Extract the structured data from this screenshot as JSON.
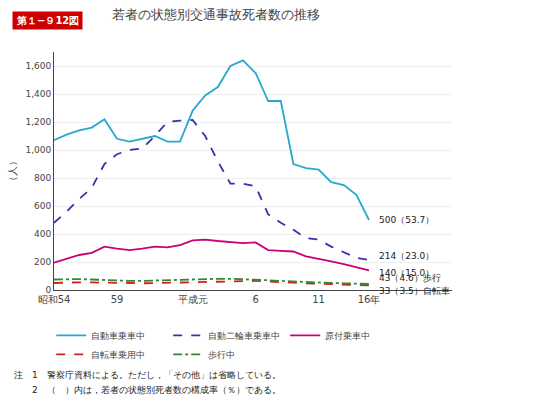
{
  "chart_data": {
    "type": "line",
    "title": "若者の状態別交通事故死者数の推移",
    "y_label": "（人）",
    "categories": [
      "昭和54",
      null,
      null,
      null,
      null,
      "59",
      null,
      null,
      null,
      null,
      null,
      "平成元",
      null,
      null,
      null,
      null,
      "6",
      null,
      null,
      null,
      null,
      "11",
      null,
      null,
      null,
      "16年"
    ],
    "series": [
      {
        "name": "自動車乗車中",
        "color": "#29a8cc",
        "line_style": "solid",
        "values": [
          1070,
          1110,
          1140,
          1160,
          1220,
          1080,
          1060,
          1080,
          1100,
          1060,
          1060,
          1280,
          1390,
          1450,
          1600,
          1640,
          1550,
          1350,
          1350,
          900,
          870,
          860,
          770,
          750,
          680,
          500
        ]
      },
      {
        "name": "自動二輪車乗車中",
        "color": "#3333aa",
        "line_style": "dashed",
        "values": [
          480,
          560,
          650,
          730,
          900,
          970,
          1000,
          1010,
          1100,
          1200,
          1210,
          1215,
          1100,
          920,
          760,
          760,
          740,
          540,
          480,
          430,
          370,
          360,
          310,
          270,
          230,
          214
        ]
      },
      {
        "name": "原付乗車中",
        "color": "#cc0077",
        "line_style": "solid",
        "values": [
          195,
          225,
          250,
          265,
          310,
          295,
          285,
          295,
          310,
          305,
          320,
          355,
          360,
          350,
          340,
          335,
          340,
          285,
          280,
          275,
          240,
          225,
          205,
          185,
          165,
          140
        ]
      },
      {
        "name": "自転車乗用中",
        "color": "#cc2222",
        "line_style": "dashed",
        "values": [
          50,
          54,
          55,
          54,
          54,
          52,
          50,
          48,
          50,
          52,
          55,
          58,
          60,
          62,
          65,
          65,
          65,
          60,
          58,
          52,
          48,
          45,
          42,
          40,
          38,
          33
        ]
      },
      {
        "name": "歩行中",
        "color": "#338833",
        "line_style": "dashdot",
        "values": [
          75,
          78,
          78,
          75,
          70,
          68,
          65,
          65,
          68,
          70,
          72,
          75,
          80,
          80,
          80,
          78,
          75,
          70,
          65,
          60,
          55,
          52,
          50,
          48,
          45,
          43
        ]
      }
    ],
    "ylim": [
      0,
      1700
    ],
    "yticks": [
      0,
      200,
      400,
      600,
      800,
      {
        "value": 1000,
        "label": "1,000"
      },
      {
        "value": 1200,
        "label": "1,200"
      },
      {
        "value": 1400,
        "label": "1,400"
      },
      {
        "value": 1600,
        "label": "1,600"
      }
    ],
    "grid": true,
    "legend": "bottom",
    "annotations": [
      {
        "text": "第１−９12図"
      },
      {
        "text": "500（53.7）",
        "series": "自動車乗車中"
      },
      {
        "text": "214（23.0）",
        "series": "自動二輪車乗車中"
      },
      {
        "text": "140（15.0）",
        "series": "原付乗車中"
      },
      {
        "text": "43（4.6）歩行",
        "series": "歩行中"
      },
      {
        "text": "33（3.5）自転車",
        "series": "自転車乗用中"
      },
      {
        "text": "注　1　警察庁資料による。ただし，「その他」は省略している。"
      },
      {
        "text": "　　2　（　）内は，若者の状態別死者数の構成率（％）である。"
      }
    ]
  }
}
